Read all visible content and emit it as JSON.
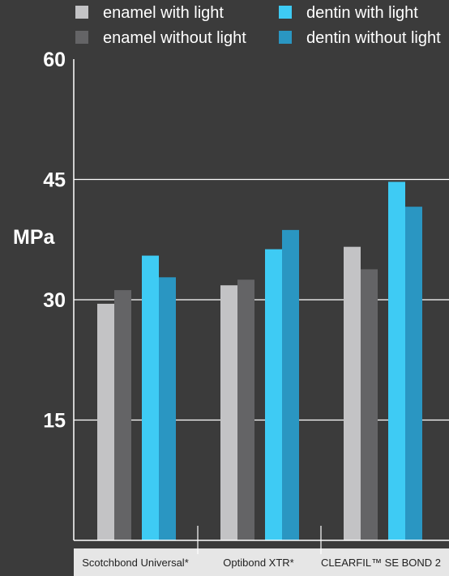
{
  "chart_data": {
    "type": "bar",
    "ylabel": "MPa",
    "ylim": [
      0,
      60
    ],
    "yticks": [
      15,
      30,
      45,
      60
    ],
    "grid": true,
    "legend_position": "top",
    "categories": [
      "Scotchbond Universal*",
      "Optibond XTR*",
      "CLEARFIL™ SE BOND 2"
    ],
    "series": [
      {
        "name": "enamel with light",
        "color": "#c3c3c5",
        "values": [
          29.5,
          31.8,
          36.6
        ]
      },
      {
        "name": "enamel without light",
        "color": "#646466",
        "values": [
          31.2,
          32.5,
          33.8
        ]
      },
      {
        "name": "dentin with light",
        "color": "#3ecbf4",
        "values": [
          35.5,
          36.3,
          44.7
        ]
      },
      {
        "name": "dentin without light",
        "color": "#2a96c2",
        "values": [
          32.8,
          38.7,
          41.6
        ]
      }
    ]
  }
}
